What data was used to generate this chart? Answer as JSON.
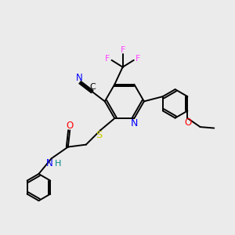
{
  "bg_color": "#ebebeb",
  "bond_color": "#000000",
  "atom_colors": {
    "N": "#0000ff",
    "O": "#ff0000",
    "S": "#cccc00",
    "F": "#ff44ff",
    "H": "#008888"
  },
  "lw": 1.4,
  "fs": 8.0
}
